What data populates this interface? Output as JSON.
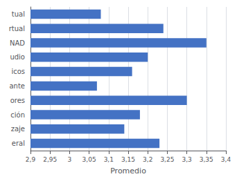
{
  "chart_data": {
    "type": "bar",
    "orientation": "horizontal",
    "xlabel": "Promedio",
    "categories": [
      "tual",
      "rtual",
      "NAD",
      "udio",
      "icos",
      "ante",
      "ores",
      "ción",
      "zaje",
      "eral"
    ],
    "values": [
      3.08,
      3.24,
      3.35,
      3.2,
      3.16,
      3.07,
      3.3,
      3.18,
      3.14,
      3.23
    ],
    "color": "#4472c4",
    "xlim": [
      2.9,
      3.4
    ],
    "xticks": [
      {
        "value": 2.9,
        "label": "2,9"
      },
      {
        "value": 2.95,
        "label": "2,95"
      },
      3,
      {
        "value": 3.05,
        "label": "3,05"
      },
      {
        "value": 3.1,
        "label": "3,1"
      },
      {
        "value": 3.15,
        "label": "3,15"
      },
      {
        "value": 3.2,
        "label": "3,2"
      },
      {
        "value": 3.25,
        "label": "3,25"
      },
      {
        "value": 3.3,
        "label": "3,3"
      },
      {
        "value": 3.35,
        "label": "3,35"
      },
      {
        "value": 3.4,
        "label": "3,4"
      }
    ],
    "grid": true
  }
}
